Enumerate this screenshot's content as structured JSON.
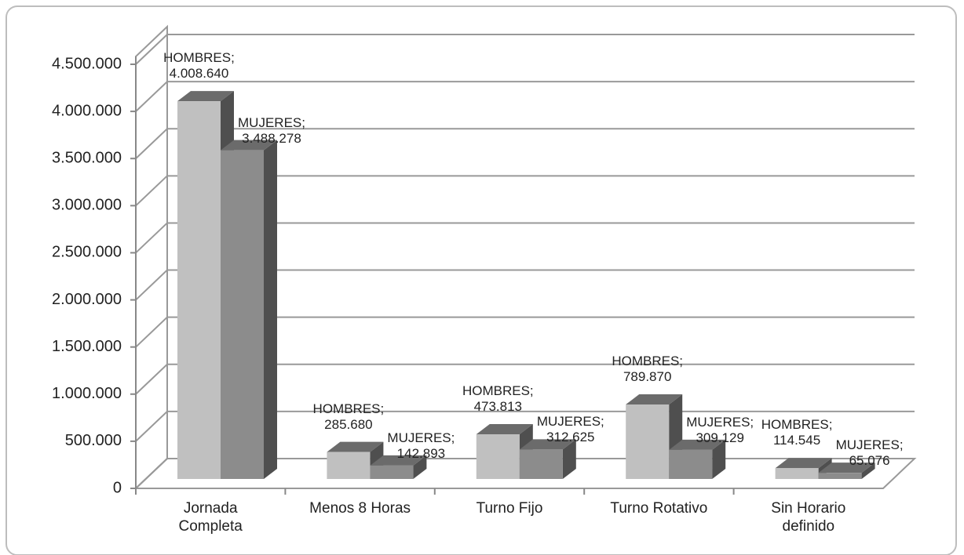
{
  "chart_data": {
    "type": "bar3d",
    "categories": [
      "Jornada Completa",
      "Menos 8 Horas",
      "Turno Fijo",
      "Turno Rotativo",
      "Sin Horario definido"
    ],
    "series": [
      {
        "name": "HOMBRES",
        "color": "#c0c0c0",
        "values": [
          4008640,
          285680,
          473813,
          789870,
          114545
        ],
        "value_labels": [
          "HOMBRES; 4.008.640",
          "HOMBRES; 285.680",
          "HOMBRES; 473.813",
          "HOMBRES; 789.870",
          "HOMBRES; 114.545"
        ]
      },
      {
        "name": "MUJERES",
        "color": "#8c8c8c",
        "values": [
          3488278,
          142893,
          312625,
          309129,
          65076
        ],
        "value_labels": [
          "MUJERES; 3.488.278",
          "MUJERES; 142.893",
          "MUJERES; 312.625",
          "MUJERES; 309.129",
          "MUJERES; 65.076"
        ]
      }
    ],
    "ylim": [
      0,
      4500000
    ],
    "yticks": [
      0,
      {
        "value": 500000,
        "label": "500.000"
      },
      {
        "value": 1000000,
        "label": "1.000.000"
      },
      {
        "value": 1500000,
        "label": "1.500.000"
      },
      {
        "value": 2000000,
        "label": "2.000.000"
      },
      {
        "value": 2500000,
        "label": "2.500.000"
      },
      {
        "value": 3000000,
        "label": "3.000.000"
      },
      {
        "value": 3500000,
        "label": "3.500.000"
      },
      {
        "value": 4000000,
        "label": "4.000.000"
      },
      {
        "value": 4500000,
        "label": "4.500.000"
      }
    ],
    "grid": true
  }
}
